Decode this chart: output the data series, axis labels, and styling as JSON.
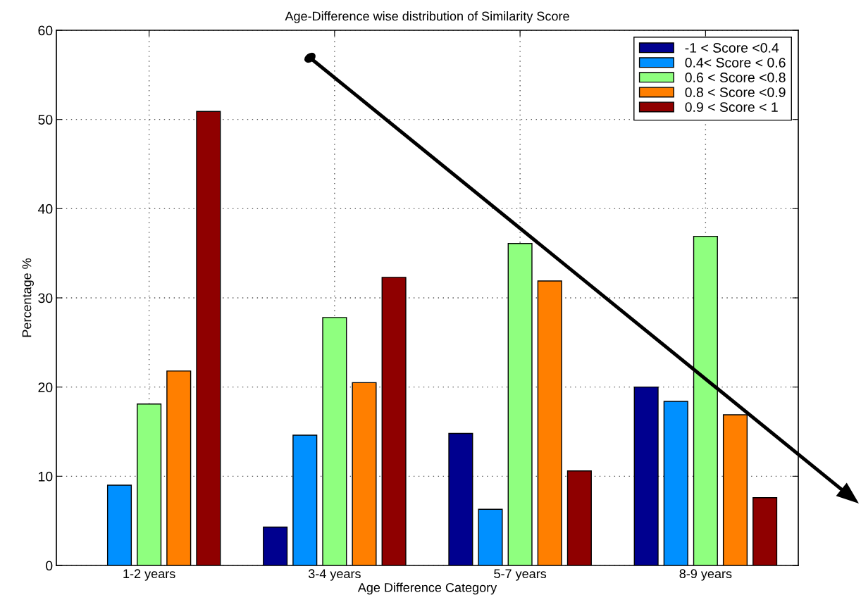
{
  "chart_data": {
    "type": "bar",
    "title": "Age-Difference wise distribution of Similarity Score",
    "xlabel": "Age Difference Category",
    "ylabel": "Percentage %",
    "categories": [
      "1-2 years",
      "3-4 years",
      "5-7 years",
      "8-9 years"
    ],
    "series": [
      {
        "name": "-1 < Score <0.4",
        "color": "#00008f",
        "values": [
          null,
          4.3,
          14.8,
          20.0
        ]
      },
      {
        "name": "0.4< Score < 0.6",
        "color": "#0090ff",
        "values": [
          9.0,
          14.6,
          6.3,
          18.4
        ]
      },
      {
        "name": "0.6 < Score <0.8",
        "color": "#8fff7f",
        "values": [
          18.1,
          27.8,
          36.1,
          36.9
        ]
      },
      {
        "name": "0.8 < Score <0.9",
        "color": "#ff7f00",
        "values": [
          21.8,
          20.5,
          31.9,
          16.9
        ]
      },
      {
        "name": "0.9 < Score < 1",
        "color": "#8f0000",
        "values": [
          50.9,
          32.3,
          10.6,
          7.6
        ]
      }
    ],
    "ylim": [
      0,
      60
    ],
    "yticks": [
      0,
      10,
      20,
      30,
      40,
      50,
      60
    ],
    "grid": true,
    "legend": "top right"
  }
}
